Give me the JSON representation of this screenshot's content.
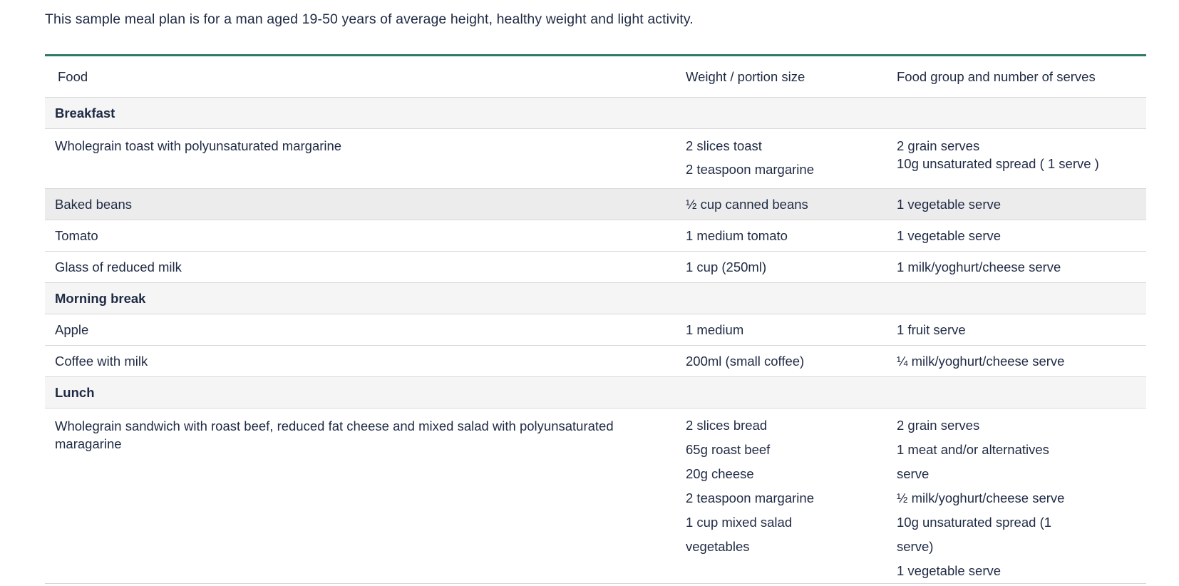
{
  "intro": "This sample meal plan is for a man aged 19-50 years of average height, healthy weight and light activity.",
  "table": {
    "headers": {
      "food": "Food",
      "weight": "Weight / portion size",
      "group": "Food group and number of serves"
    },
    "breakfast": {
      "title": "Breakfast",
      "rows": [
        {
          "food": "Wholegrain toast with polyunsaturated margarine",
          "weight": [
            "2 slices toast",
            "2 teaspoon margarine"
          ],
          "group": [
            "2 grain serves",
            "10g unsaturated spread ( 1 serve )"
          ]
        },
        {
          "food": "Baked beans",
          "weight": "½ cup canned beans",
          "group": "1 vegetable serve"
        },
        {
          "food": "Tomato",
          "weight": "1 medium tomato",
          "group": "1 vegetable serve"
        },
        {
          "food": "Glass of reduced milk",
          "weight": "1 cup (250ml)",
          "group": "1 milk/yoghurt/cheese serve"
        }
      ]
    },
    "morning_break": {
      "title": "Morning break",
      "rows": [
        {
          "food": "Apple",
          "weight": "1 medium",
          "group": "1 fruit serve"
        },
        {
          "food": "Coffee with milk",
          "weight": "200ml (small coffee)",
          "group": "¼ milk/yoghurt/cheese serve"
        }
      ]
    },
    "lunch": {
      "title": "Lunch",
      "rows": [
        {
          "food": "Wholegrain sandwich with roast beef, reduced fat cheese and mixed salad with polyunsaturated maragarine",
          "weight": [
            "2 slices bread",
            "65g roast beef",
            "20g cheese",
            "2 teaspoon margarine",
            "1 cup mixed salad",
            "vegetables"
          ],
          "group": [
            "2 grain serves",
            "1 meat and/or alternatives",
            "serve",
            "½ milk/yoghurt/cheese serve",
            "10g unsaturated spread (1",
            "serve)",
            "1 vegetable serve"
          ]
        }
      ]
    }
  }
}
